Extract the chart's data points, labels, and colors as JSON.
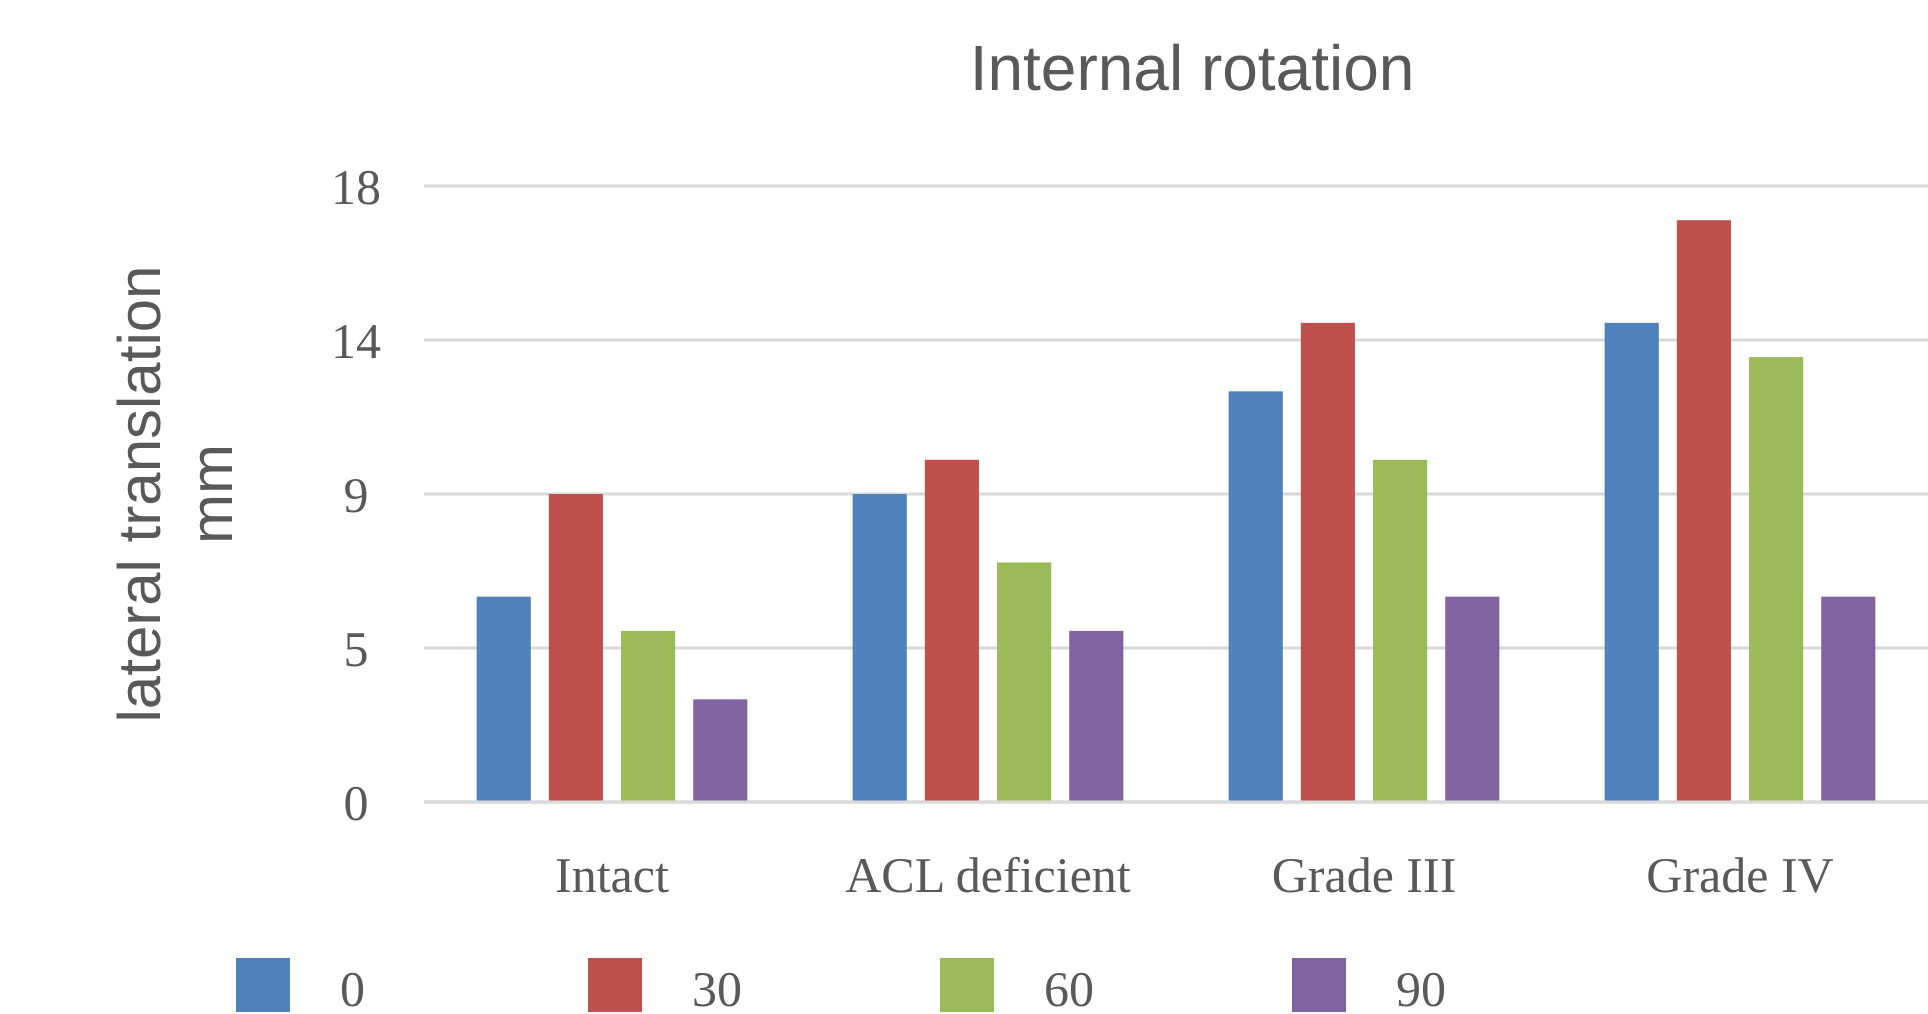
{
  "chart_data": {
    "type": "bar",
    "title": "Internal rotation",
    "ylabel": "lateral translation mm",
    "categories": [
      "Intact",
      "ACL deficient",
      "Grade III",
      "Grade IV"
    ],
    "series": [
      {
        "name": "0",
        "color": "#4f81bd",
        "values": [
          6,
          9,
          12,
          14
        ]
      },
      {
        "name": "30",
        "color": "#c0504d",
        "values": [
          9,
          10,
          14,
          17
        ]
      },
      {
        "name": "60",
        "color": "#9bbb59",
        "values": [
          5,
          7,
          10,
          13
        ]
      },
      {
        "name": "90",
        "color": "#8064a2",
        "values": [
          3,
          5,
          6,
          6
        ]
      }
    ],
    "ylim": [
      0,
      18
    ],
    "yticks": [
      0,
      {
        "value": 4.5,
        "label": "5"
      },
      9,
      {
        "value": 13.5,
        "label": "14"
      },
      18
    ],
    "grid": "y",
    "legend": "bottom"
  }
}
